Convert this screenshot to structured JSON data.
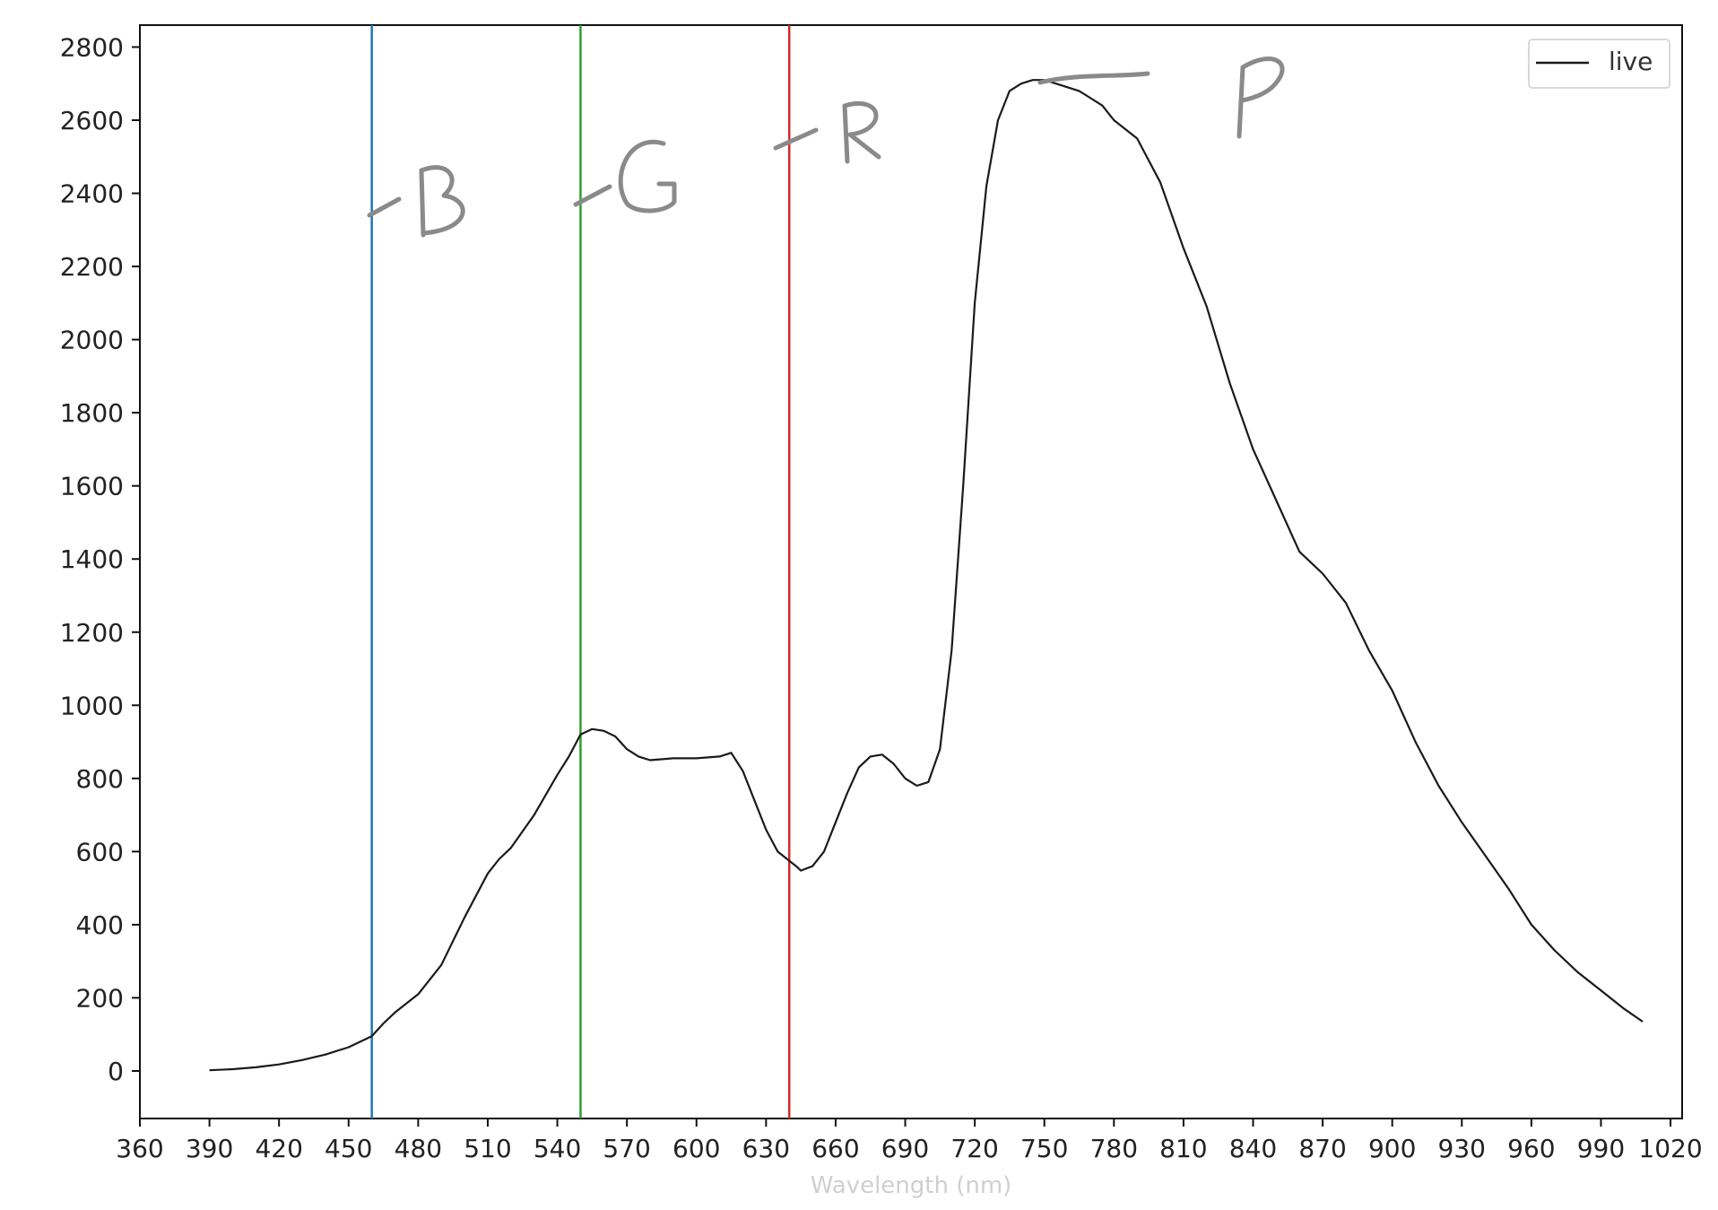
{
  "chart_data": {
    "type": "line",
    "title": "",
    "xlabel": "Wavelength (nm)",
    "ylabel": "",
    "xlim": [
      360,
      1025
    ],
    "ylim": [
      -130,
      2860
    ],
    "x_ticks": [
      360,
      390,
      420,
      450,
      480,
      510,
      540,
      570,
      600,
      630,
      660,
      690,
      720,
      750,
      780,
      810,
      840,
      870,
      900,
      930,
      960,
      990,
      1020
    ],
    "y_ticks": [
      0,
      200,
      400,
      600,
      800,
      1000,
      1200,
      1400,
      1600,
      1800,
      2000,
      2200,
      2400,
      2600,
      2800
    ],
    "grid": false,
    "legend_position": "top-right",
    "series": [
      {
        "name": "live",
        "color": "#1a1a1a",
        "x": [
          390,
          400,
          410,
          420,
          430,
          440,
          450,
          460,
          465,
          470,
          480,
          490,
          500,
          510,
          515,
          520,
          530,
          540,
          545,
          550,
          555,
          560,
          565,
          570,
          575,
          580,
          590,
          600,
          610,
          615,
          620,
          625,
          630,
          635,
          640,
          643,
          645,
          650,
          655,
          660,
          665,
          670,
          675,
          680,
          685,
          690,
          695,
          700,
          705,
          710,
          715,
          720,
          725,
          730,
          735,
          740,
          745,
          750,
          755,
          760,
          765,
          770,
          775,
          780,
          790,
          800,
          810,
          820,
          830,
          840,
          850,
          860,
          870,
          880,
          890,
          900,
          910,
          920,
          930,
          940,
          950,
          960,
          970,
          980,
          990,
          1000,
          1008
        ],
        "y": [
          2,
          5,
          10,
          18,
          30,
          45,
          65,
          95,
          130,
          160,
          210,
          290,
          420,
          540,
          580,
          610,
          700,
          810,
          860,
          920,
          935,
          930,
          915,
          880,
          860,
          850,
          855,
          855,
          860,
          870,
          820,
          740,
          660,
          600,
          575,
          560,
          548,
          560,
          600,
          680,
          760,
          830,
          860,
          865,
          840,
          800,
          780,
          790,
          880,
          1150,
          1600,
          2100,
          2420,
          2600,
          2680,
          2700,
          2710,
          2710,
          2700,
          2690,
          2680,
          2660,
          2640,
          2600,
          2550,
          2430,
          2250,
          2090,
          1880,
          1700,
          1560,
          1420,
          1360,
          1280,
          1150,
          1040,
          900,
          780,
          680,
          590,
          500,
          400,
          330,
          270,
          220,
          170,
          135
        ]
      }
    ],
    "vertical_lines": [
      {
        "x": 460,
        "color": "#1f77b4"
      },
      {
        "x": 550,
        "color": "#2ca02c"
      },
      {
        "x": 640,
        "color": "#d62728"
      }
    ],
    "annotations": [
      "-B",
      "-G",
      "-R",
      "P"
    ]
  }
}
